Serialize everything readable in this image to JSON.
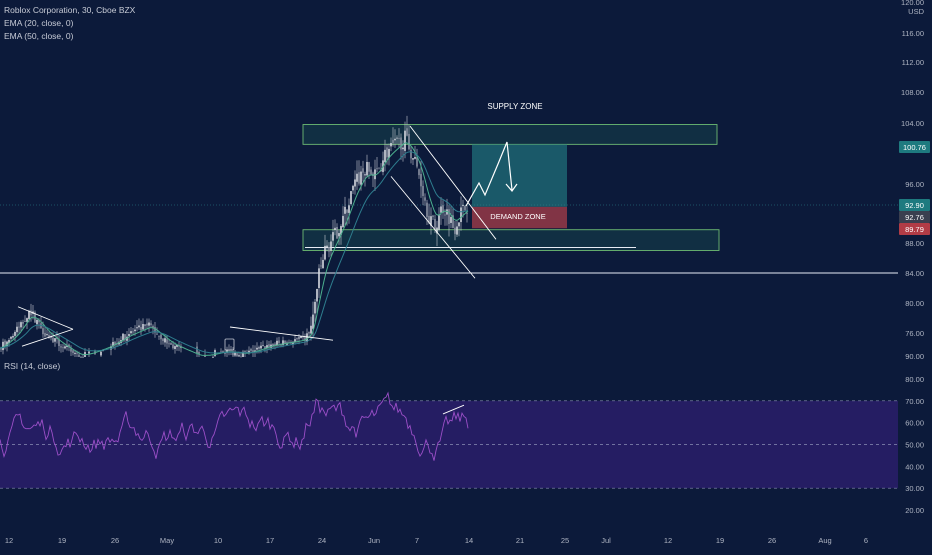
{
  "header": {
    "symbol_line": "Roblox Corporation, 30, Cboe BZX",
    "ema20_label": "EMA (20, close, 0)",
    "ema50_label": "EMA (50, close, 0)"
  },
  "rsi_panel": {
    "label": "RSI (14, close)"
  },
  "annotations": {
    "supply_zone": "SUPPLY ZONE",
    "demand_zone": "DEMAND ZONE"
  },
  "colors": {
    "background": "#0c1a3a",
    "candle": "#c8cbd3",
    "ema20": "#4caf8e",
    "ema50": "#2e7d8e",
    "zone_border": "#6dbb73",
    "target_box": "#1f6f7a",
    "stop_box": "#a83e4a",
    "rsi_line": "#9b4fc8",
    "rsi_band": "#2a1f6b"
  },
  "chart_data": [
    {
      "type": "candlestick",
      "title": "Roblox Corporation, 30, Cboe BZX",
      "currency": "USD",
      "x_ticks": [
        "12",
        "19",
        "26",
        "May",
        "10",
        "17",
        "24",
        "Jun",
        "7",
        "14",
        "21",
        "25",
        "Jul",
        "12",
        "19",
        "26",
        "Aug",
        "6"
      ],
      "y_ticks": [
        "116.00",
        "112.00",
        "108.00",
        "104.00",
        "96.00",
        "88.00",
        "84.00",
        "80.00",
        "76.00"
      ],
      "y_top_label": "120.00",
      "ylim": [
        72,
        120
      ],
      "price_labels": [
        {
          "value": "100.76",
          "role": "target"
        },
        {
          "value": "92.90",
          "role": "entry"
        },
        {
          "value": "92.76",
          "role": "last"
        },
        {
          "value": "89.79",
          "role": "stop"
        }
      ],
      "series": [
        {
          "name": "EMA (20, close, 0)"
        },
        {
          "name": "EMA (50, close, 0)"
        }
      ],
      "zones": [
        {
          "label": "SUPPLY ZONE",
          "from": 101.2,
          "to": 103.8
        },
        {
          "label": "DEMAND ZONE",
          "from": 90.0,
          "to": 92.9
        },
        {
          "label": "",
          "from": 87.0,
          "to": 89.8
        }
      ],
      "horizontal_lines": [
        84.0,
        87.4
      ]
    },
    {
      "type": "line",
      "title": "RSI (14, close)",
      "y_ticks": [
        "80.00",
        "70.00",
        "60.00",
        "50.00",
        "40.00",
        "30.00",
        "20.00"
      ],
      "ylim": [
        15,
        87
      ],
      "band": [
        30,
        70
      ],
      "midline": 50
    }
  ]
}
